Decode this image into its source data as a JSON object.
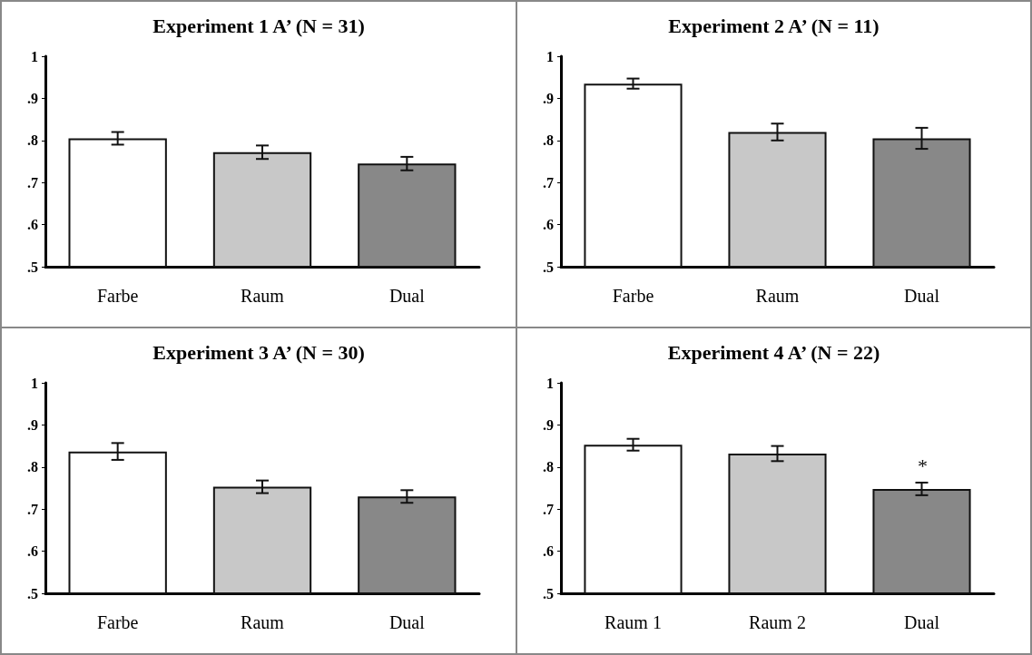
{
  "chart_data": [
    {
      "type": "bar",
      "title": "Experiment 1 A’ (N = 31)",
      "categories": [
        "Farbe",
        "Raum",
        "Dual"
      ],
      "values": [
        0.805,
        0.772,
        0.745
      ],
      "errors": [
        0.015,
        0.016,
        0.016
      ],
      "colors": [
        "#ffffff",
        "#c8c8c8",
        "#888888"
      ],
      "ylim": [
        0.5,
        1
      ],
      "yticks": [
        {
          "value": 0.5,
          "label": ".5"
        },
        {
          "value": 0.6,
          "label": ".6"
        },
        {
          "value": 0.7,
          "label": ".7"
        },
        {
          "value": 0.8,
          "label": ".8"
        },
        {
          "value": 0.9,
          "label": ".9"
        },
        {
          "value": 1,
          "label": "1"
        }
      ],
      "grid": false
    },
    {
      "type": "bar",
      "title": "Experiment 2 A’ (N = 11)",
      "categories": [
        "Farbe",
        "Raum",
        "Dual"
      ],
      "values": [
        0.935,
        0.82,
        0.805
      ],
      "errors": [
        0.012,
        0.02,
        0.025
      ],
      "colors": [
        "#ffffff",
        "#c8c8c8",
        "#888888"
      ],
      "ylim": [
        0.5,
        1
      ],
      "yticks": [
        {
          "value": 0.5,
          "label": ".5"
        },
        {
          "value": 0.6,
          "label": ".6"
        },
        {
          "value": 0.7,
          "label": ".7"
        },
        {
          "value": 0.8,
          "label": ".8"
        },
        {
          "value": 0.9,
          "label": ".9"
        },
        {
          "value": 1,
          "label": "1"
        }
      ],
      "grid": false
    },
    {
      "type": "bar",
      "title": "Experiment 3 A’ (N = 30)",
      "categories": [
        "Farbe",
        "Raum",
        "Dual"
      ],
      "values": [
        0.837,
        0.753,
        0.73
      ],
      "errors": [
        0.02,
        0.015,
        0.015
      ],
      "colors": [
        "#ffffff",
        "#c8c8c8",
        "#888888"
      ],
      "ylim": [
        0.5,
        1
      ],
      "yticks": [
        {
          "value": 0.5,
          "label": ".5"
        },
        {
          "value": 0.6,
          "label": ".6"
        },
        {
          "value": 0.7,
          "label": ".7"
        },
        {
          "value": 0.8,
          "label": ".8"
        },
        {
          "value": 0.9,
          "label": ".9"
        },
        {
          "value": 1,
          "label": "1"
        }
      ],
      "grid": false
    },
    {
      "type": "bar",
      "title": "Experiment 4 A’ (N = 22)",
      "categories": [
        "Raum 1",
        "Raum 2",
        "Dual"
      ],
      "values": [
        0.853,
        0.832,
        0.748
      ],
      "errors": [
        0.014,
        0.018,
        0.015
      ],
      "colors": [
        "#ffffff",
        "#c8c8c8",
        "#888888"
      ],
      "ylim": [
        0.5,
        1
      ],
      "yticks": [
        {
          "value": 0.5,
          "label": ".5"
        },
        {
          "value": 0.6,
          "label": ".6"
        },
        {
          "value": 0.7,
          "label": ".7"
        },
        {
          "value": 0.8,
          "label": ".8"
        },
        {
          "value": 0.9,
          "label": ".9"
        },
        {
          "value": 1,
          "label": "1"
        }
      ],
      "grid": false,
      "annotations": [
        "*"
      ]
    }
  ]
}
